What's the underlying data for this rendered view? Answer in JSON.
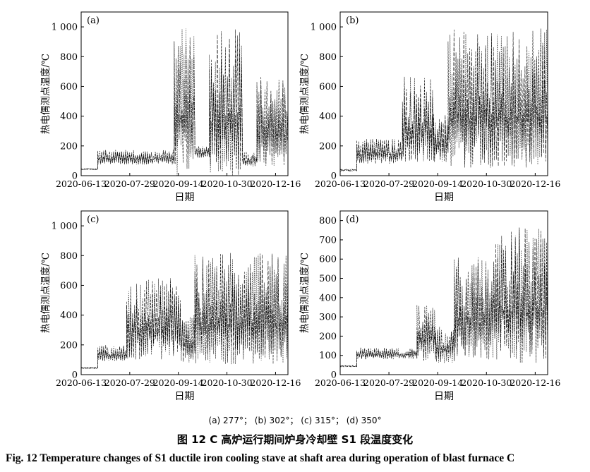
{
  "figure": {
    "subcaption": "(a) 277°；  (b) 302°；  (c) 315°；  (d) 350°",
    "caption_cn": "图 12   C 高炉运行期间炉身冷却壁 S1 段温度变化",
    "caption_en": "Fig. 12   Temperature changes of S1 ductile iron cooling stave at shaft area during operation of blast furnace C"
  },
  "chart_data": [
    {
      "type": "line",
      "panel": "(a)",
      "xlabel": "日期",
      "ylabel": "热电偶测点温度/℃",
      "x_tick_labels": [
        "2020-06-13",
        "2020-07-29",
        "2020-09-14",
        "2020-10-30",
        "2020-12-16"
      ],
      "y_ticks": [
        0,
        200,
        400,
        600,
        800,
        1000
      ],
      "y_tick_labels": [
        "0",
        "200",
        "400",
        "600",
        "800",
        "1 000"
      ],
      "ylim": [
        0,
        1100
      ],
      "segments": [
        {
          "x": [
            0.0,
            0.08
          ],
          "low": 38,
          "high": 48
        },
        {
          "x": [
            0.08,
            0.45
          ],
          "low": 75,
          "high": 175
        },
        {
          "x": [
            0.45,
            0.55
          ],
          "low": 0,
          "high": 1000
        },
        {
          "x": [
            0.55,
            0.62
          ],
          "low": 120,
          "high": 200
        },
        {
          "x": [
            0.62,
            0.78
          ],
          "low": 0,
          "high": 990
        },
        {
          "x": [
            0.78,
            0.85
          ],
          "low": 60,
          "high": 160
        },
        {
          "x": [
            0.85,
            1.0
          ],
          "low": 60,
          "high": 670
        }
      ]
    },
    {
      "type": "line",
      "panel": "(b)",
      "xlabel": "日期",
      "ylabel": "热电偶测点温度/℃",
      "x_tick_labels": [
        "2020-06-13",
        "2020-07-29",
        "2020-09-14",
        "2020-10-30",
        "2020-12-16"
      ],
      "y_ticks": [
        0,
        200,
        400,
        600,
        800,
        1000
      ],
      "y_tick_labels": [
        "0",
        "200",
        "400",
        "600",
        "800",
        "1 000"
      ],
      "ylim": [
        0,
        1100
      ],
      "segments": [
        {
          "x": [
            0.0,
            0.08
          ],
          "low": 30,
          "high": 45
        },
        {
          "x": [
            0.08,
            0.3
          ],
          "low": 80,
          "high": 250
        },
        {
          "x": [
            0.3,
            0.45
          ],
          "low": 90,
          "high": 680
        },
        {
          "x": [
            0.45,
            0.52
          ],
          "low": 90,
          "high": 430
        },
        {
          "x": [
            0.52,
            1.0
          ],
          "low": 50,
          "high": 1000
        }
      ]
    },
    {
      "type": "line",
      "panel": "(c)",
      "xlabel": "日期",
      "ylabel": "热电偶测点温度/℃",
      "x_tick_labels": [
        "2020-06-13",
        "2020-07-29",
        "2020-09-14",
        "2020-10-30",
        "2020-12-16"
      ],
      "y_ticks": [
        0,
        200,
        400,
        600,
        800,
        1000
      ],
      "y_tick_labels": [
        "0",
        "200",
        "400",
        "600",
        "800",
        "1 000"
      ],
      "ylim": [
        0,
        1100
      ],
      "segments": [
        {
          "x": [
            0.0,
            0.08
          ],
          "low": 40,
          "high": 50
        },
        {
          "x": [
            0.08,
            0.22
          ],
          "low": 90,
          "high": 200
        },
        {
          "x": [
            0.22,
            0.48
          ],
          "low": 100,
          "high": 650
        },
        {
          "x": [
            0.48,
            0.55
          ],
          "low": 80,
          "high": 400
        },
        {
          "x": [
            0.55,
            1.0
          ],
          "low": 70,
          "high": 820
        }
      ]
    },
    {
      "type": "line",
      "panel": "(d)",
      "xlabel": "日期",
      "ylabel": "热电偶测点温度/℃",
      "x_tick_labels": [
        "2020-06-13",
        "2020-07-29",
        "2020-09-14",
        "2020-10-30",
        "2020-12-16"
      ],
      "y_ticks": [
        0,
        100,
        200,
        300,
        400,
        500,
        600,
        700,
        800
      ],
      "y_tick_labels": [
        "0",
        "100",
        "200",
        "300",
        "400",
        "500",
        "600",
        "700",
        "800"
      ],
      "ylim": [
        0,
        850
      ],
      "segments": [
        {
          "x": [
            0.0,
            0.08
          ],
          "low": 40,
          "high": 48
        },
        {
          "x": [
            0.08,
            0.37
          ],
          "low": 80,
          "high": 140
        },
        {
          "x": [
            0.37,
            0.46
          ],
          "low": 70,
          "high": 380
        },
        {
          "x": [
            0.46,
            0.55
          ],
          "low": 60,
          "high": 250
        },
        {
          "x": [
            0.55,
            0.75
          ],
          "low": 80,
          "high": 610
        },
        {
          "x": [
            0.75,
            1.0
          ],
          "low": 60,
          "high": 770
        }
      ]
    }
  ]
}
